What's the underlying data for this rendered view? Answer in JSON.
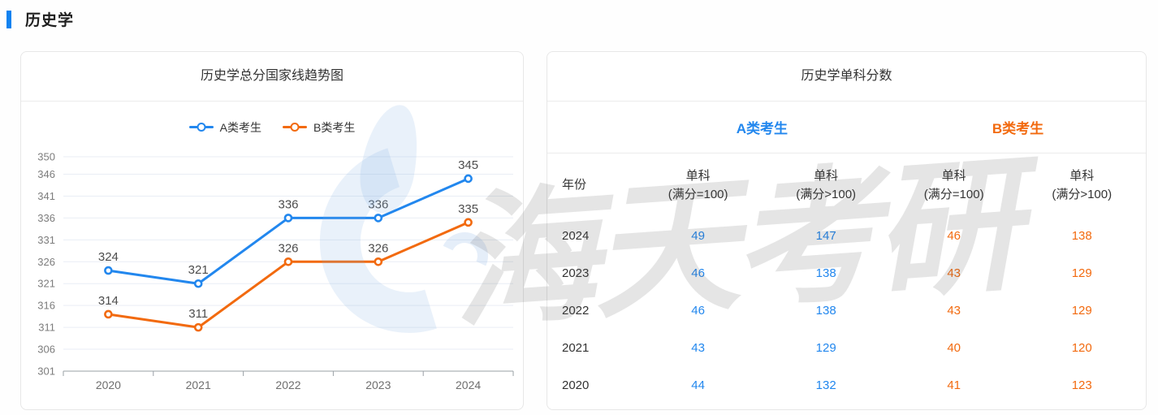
{
  "page": {
    "title": "历史学"
  },
  "colors": {
    "accent": "#0f82f0",
    "series_a": "#2287ee",
    "series_b": "#f26a0f"
  },
  "watermark": {
    "text": "海天考研",
    "logo": "haitian-logo"
  },
  "chart_data": {
    "type": "line",
    "title": "历史学总分国家线趋势图",
    "categories": [
      "2020",
      "2021",
      "2022",
      "2023",
      "2024"
    ],
    "series": [
      {
        "name": "A类考生",
        "color": "#2287ee",
        "values": [
          324,
          321,
          336,
          336,
          345
        ]
      },
      {
        "name": "B类考生",
        "color": "#f26a0f",
        "values": [
          314,
          311,
          326,
          326,
          335
        ]
      }
    ],
    "xlabel": "",
    "ylabel": "",
    "ylim": [
      301,
      350
    ],
    "yticks": [
      301,
      306,
      311,
      316,
      321,
      326,
      331,
      336,
      341,
      346,
      350
    ],
    "grid": true,
    "legend_position": "top",
    "data_labels": true
  },
  "table_card": {
    "title": "历史学单科分数",
    "group_a": "A类考生",
    "group_b": "B类考生",
    "columns": [
      {
        "line1": "年份",
        "line2": ""
      },
      {
        "line1": "单科",
        "line2": "(满分=100)"
      },
      {
        "line1": "单科",
        "line2": "(满分>100)"
      },
      {
        "line1": "单科",
        "line2": "(满分=100)"
      },
      {
        "line1": "单科",
        "line2": "(满分>100)"
      }
    ],
    "rows": [
      {
        "year": "2024",
        "a1": "49",
        "a2": "147",
        "b1": "46",
        "b2": "138"
      },
      {
        "year": "2023",
        "a1": "46",
        "a2": "138",
        "b1": "43",
        "b2": "129"
      },
      {
        "year": "2022",
        "a1": "46",
        "a2": "138",
        "b1": "43",
        "b2": "129"
      },
      {
        "year": "2021",
        "a1": "43",
        "a2": "129",
        "b1": "40",
        "b2": "120"
      },
      {
        "year": "2020",
        "a1": "44",
        "a2": "132",
        "b1": "41",
        "b2": "123"
      }
    ]
  }
}
